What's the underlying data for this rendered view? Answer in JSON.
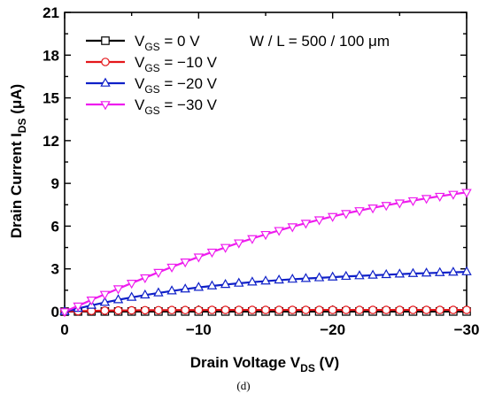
{
  "caption": "(d)",
  "chart_data": {
    "type": "line",
    "title": "",
    "annotation": "W / L = 500 / 100 μm",
    "xlabel": {
      "main": "Drain Voltage V",
      "sub": "DS",
      "unit": " (V)"
    },
    "ylabel": {
      "main": "Drain Current I",
      "sub": "DS",
      "unit": " (μA)"
    },
    "xlim": [
      0,
      -30
    ],
    "ylim": [
      0,
      21
    ],
    "x_ticks": [
      0,
      -10,
      -20,
      -30
    ],
    "x_tick_labels": [
      "0",
      "−10",
      "−20",
      "−30"
    ],
    "y_ticks": [
      0,
      3,
      6,
      9,
      12,
      15,
      18,
      21
    ],
    "y_tick_labels": [
      "0",
      "3",
      "6",
      "9",
      "12",
      "15",
      "18",
      "21"
    ],
    "grid": false,
    "legend_position": "top-left",
    "x": [
      0,
      -1,
      -2,
      -3,
      -4,
      -5,
      -6,
      -7,
      -8,
      -9,
      -10,
      -11,
      -12,
      -13,
      -14,
      -15,
      -16,
      -17,
      -18,
      -19,
      -20,
      -21,
      -22,
      -23,
      -24,
      -25,
      -26,
      -27,
      -28,
      -29,
      -30
    ],
    "series": [
      {
        "name": "V_GS = 0 V",
        "legend_main": "V",
        "legend_sub": "GS",
        "legend_rest": " = 0 V",
        "color": "#000000",
        "marker": "square",
        "values": [
          0.0,
          0.01,
          0.01,
          0.01,
          0.01,
          0.01,
          0.01,
          0.01,
          0.01,
          0.01,
          0.01,
          0.01,
          0.01,
          0.01,
          0.01,
          0.01,
          0.01,
          0.01,
          0.01,
          0.01,
          0.01,
          0.01,
          0.01,
          0.01,
          0.01,
          0.01,
          0.01,
          0.01,
          0.01,
          0.01,
          0.01
        ]
      },
      {
        "name": "V_GS = −10 V",
        "legend_main": "V",
        "legend_sub": "GS",
        "legend_rest": " = −10 V",
        "color": "#e4171b",
        "marker": "circle",
        "values": [
          0.0,
          0.03,
          0.05,
          0.07,
          0.08,
          0.09,
          0.1,
          0.1,
          0.11,
          0.11,
          0.11,
          0.12,
          0.12,
          0.12,
          0.12,
          0.12,
          0.12,
          0.12,
          0.12,
          0.12,
          0.12,
          0.12,
          0.12,
          0.12,
          0.12,
          0.12,
          0.12,
          0.12,
          0.12,
          0.12,
          0.12
        ]
      },
      {
        "name": "V_GS = −20 V",
        "legend_main": "V",
        "legend_sub": "GS",
        "legend_rest": " = −20 V",
        "color": "#0f20c8",
        "marker": "triangle-up",
        "values": [
          0.0,
          0.22,
          0.44,
          0.64,
          0.83,
          1.0,
          1.16,
          1.31,
          1.45,
          1.58,
          1.7,
          1.8,
          1.9,
          1.99,
          2.07,
          2.14,
          2.21,
          2.27,
          2.32,
          2.37,
          2.42,
          2.47,
          2.51,
          2.55,
          2.59,
          2.63,
          2.67,
          2.7,
          2.73,
          2.76,
          2.79
        ]
      },
      {
        "name": "V_GS = −30 V",
        "legend_main": "V",
        "legend_sub": "GS",
        "legend_rest": " = −30 V",
        "color": "#ee1cee",
        "marker": "triangle-down",
        "values": [
          0.0,
          0.4,
          0.82,
          1.22,
          1.61,
          2.0,
          2.38,
          2.76,
          3.13,
          3.49,
          3.84,
          4.18,
          4.51,
          4.83,
          5.13,
          5.42,
          5.7,
          5.96,
          6.21,
          6.45,
          6.68,
          6.89,
          7.09,
          7.28,
          7.46,
          7.63,
          7.79,
          7.95,
          8.1,
          8.24,
          8.37
        ]
      }
    ]
  }
}
